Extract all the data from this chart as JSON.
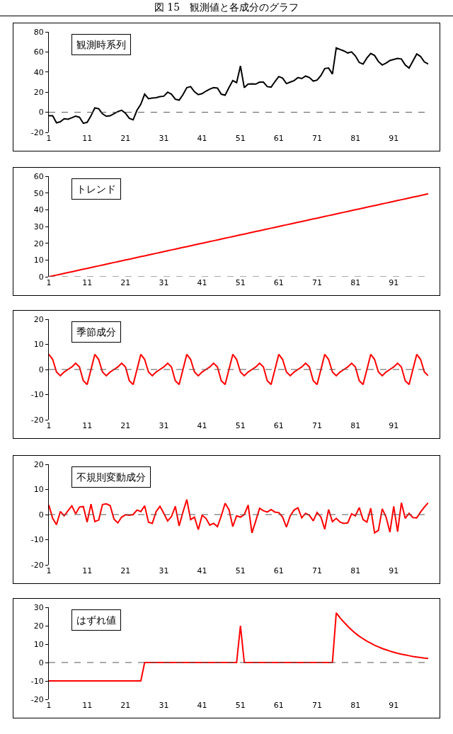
{
  "chart_data": [
    {
      "type": "line",
      "title": "図 15　観測値と各成分のグラフ",
      "annotations": [
        "観測時系列"
      ],
      "x": [
        1,
        2,
        3,
        4,
        5,
        6,
        7,
        8,
        9,
        10,
        11,
        12,
        13,
        14,
        15,
        16,
        17,
        18,
        19,
        20,
        21,
        22,
        23,
        24,
        25,
        26,
        27,
        28,
        29,
        30,
        31,
        32,
        33,
        34,
        35,
        36,
        37,
        38,
        39,
        40,
        41,
        42,
        43,
        44,
        45,
        46,
        47,
        48,
        49,
        50,
        51,
        52,
        53,
        54,
        55,
        56,
        57,
        58,
        59,
        60,
        61,
        62,
        63,
        64,
        65,
        66,
        67,
        68,
        69,
        70,
        71,
        72,
        73,
        74,
        75,
        76,
        77,
        78,
        79,
        80,
        81,
        82,
        83,
        84,
        85,
        86,
        87,
        88,
        89,
        90,
        91,
        92,
        93,
        94,
        95,
        96,
        97,
        98,
        99,
        100
      ],
      "xlim": [
        1,
        100
      ],
      "xticks": [
        1,
        11,
        21,
        31,
        41,
        51,
        61,
        71,
        81,
        91
      ],
      "ylim": [
        -20,
        80
      ],
      "yticks": [
        -20,
        0,
        20,
        40,
        60,
        80
      ],
      "grid": false,
      "ref_lines": [
        {
          "axis": "y",
          "value": 0,
          "label": null,
          "line_style": "dashed",
          "color": "#555555"
        }
      ],
      "series": [
        {
          "color": "#000000",
          "values": [
            -3.5,
            -3.5,
            -10.5,
            -9.5,
            -6.5,
            -7,
            -5.5,
            -3.8,
            -5,
            -11,
            -10,
            -3.5,
            4.3,
            3.5,
            -1.5,
            -4,
            -3.5,
            -1.5,
            0.7,
            2,
            -1,
            -6,
            -7.5,
            2,
            8,
            18,
            13.5,
            14.2,
            14.5,
            15.5,
            16,
            20,
            18,
            13,
            12,
            17.5,
            24.5,
            25.5,
            20.5,
            17.5,
            18.5,
            21,
            23,
            24.5,
            24,
            18,
            17,
            24.5,
            31.5,
            29.5,
            46,
            24.5,
            28,
            28.2,
            28,
            30,
            30,
            25.5,
            25,
            30.5,
            35.5,
            34,
            28.5,
            30,
            31.5,
            34.5,
            33.5,
            36,
            34.5,
            31,
            32,
            36.5,
            43.5,
            44,
            38,
            64,
            62.5,
            61,
            59,
            60,
            56,
            49.5,
            48,
            54,
            58.5,
            56.5,
            50.5,
            47,
            49,
            51.5,
            52.5,
            53.5,
            53,
            47,
            44,
            51,
            58,
            55.5,
            50,
            48
          ]
        }
      ]
    },
    {
      "type": "line",
      "annotations": [
        "トレンド"
      ],
      "x": [
        1,
        2,
        3,
        4,
        5,
        6,
        7,
        8,
        9,
        10,
        11,
        12,
        13,
        14,
        15,
        16,
        17,
        18,
        19,
        20,
        21,
        22,
        23,
        24,
        25,
        26,
        27,
        28,
        29,
        30,
        31,
        32,
        33,
        34,
        35,
        36,
        37,
        38,
        39,
        40,
        41,
        42,
        43,
        44,
        45,
        46,
        47,
        48,
        49,
        50,
        51,
        52,
        53,
        54,
        55,
        56,
        57,
        58,
        59,
        60,
        61,
        62,
        63,
        64,
        65,
        66,
        67,
        68,
        69,
        70,
        71,
        72,
        73,
        74,
        75,
        76,
        77,
        78,
        79,
        80,
        81,
        82,
        83,
        84,
        85,
        86,
        87,
        88,
        89,
        90,
        91,
        92,
        93,
        94,
        95,
        96,
        97,
        98,
        99,
        100
      ],
      "xlim": [
        1,
        100
      ],
      "xticks": [
        1,
        11,
        21,
        31,
        41,
        51,
        61,
        71,
        81,
        91
      ],
      "ylim": [
        0,
        60
      ],
      "yticks": [
        0,
        10,
        20,
        30,
        40,
        50,
        60
      ],
      "grid": false,
      "ref_lines": [
        {
          "axis": "y",
          "value": 0,
          "label": null,
          "line_style": "dashed",
          "color": "#555555"
        }
      ],
      "series": [
        {
          "color": "#ff0000",
          "values": [
            0,
            0.5,
            1,
            1.5,
            2,
            2.5,
            3,
            3.5,
            4,
            4.5,
            5,
            5.5,
            6,
            6.5,
            7,
            7.5,
            8,
            8.5,
            9,
            9.5,
            10,
            10.5,
            11,
            11.5,
            12,
            12.5,
            13,
            13.5,
            14,
            14.5,
            15,
            15.5,
            16,
            16.5,
            17,
            17.5,
            18,
            18.5,
            19,
            19.5,
            20,
            20.5,
            21,
            21.5,
            22,
            22.5,
            23,
            23.5,
            24,
            24.5,
            25,
            25.5,
            26,
            26.5,
            27,
            27.5,
            28,
            28.5,
            29,
            29.5,
            30,
            30.5,
            31,
            31.5,
            32,
            32.5,
            33,
            33.5,
            34,
            34.5,
            35,
            35.5,
            36,
            36.5,
            37,
            37.5,
            38,
            38.5,
            39,
            39.5,
            40,
            40.5,
            41,
            41.5,
            42,
            42.5,
            43,
            43.5,
            44,
            44.5,
            45,
            45.5,
            46,
            46.5,
            47,
            47.5,
            48,
            48.5,
            49,
            49.5
          ]
        }
      ]
    },
    {
      "type": "line",
      "annotations": [
        "季節成分"
      ],
      "x": [
        1,
        2,
        3,
        4,
        5,
        6,
        7,
        8,
        9,
        10,
        11,
        12,
        13,
        14,
        15,
        16,
        17,
        18,
        19,
        20,
        21,
        22,
        23,
        24,
        25,
        26,
        27,
        28,
        29,
        30,
        31,
        32,
        33,
        34,
        35,
        36,
        37,
        38,
        39,
        40,
        41,
        42,
        43,
        44,
        45,
        46,
        47,
        48,
        49,
        50,
        51,
        52,
        53,
        54,
        55,
        56,
        57,
        58,
        59,
        60,
        61,
        62,
        63,
        64,
        65,
        66,
        67,
        68,
        69,
        70,
        71,
        72,
        73,
        74,
        75,
        76,
        77,
        78,
        79,
        80,
        81,
        82,
        83,
        84,
        85,
        86,
        87,
        88,
        89,
        90,
        91,
        92,
        93,
        94,
        95,
        96,
        97,
        98,
        99,
        100
      ],
      "xlim": [
        1,
        100
      ],
      "xticks": [
        1,
        11,
        21,
        31,
        41,
        51,
        61,
        71,
        81,
        91
      ],
      "ylim": [
        -20,
        20
      ],
      "yticks": [
        -20,
        -10,
        0,
        10,
        20
      ],
      "grid": false,
      "ref_lines": [
        {
          "axis": "y",
          "value": 0,
          "label": null,
          "line_style": "dashed",
          "color": "#555555"
        }
      ],
      "series": [
        {
          "color": "#ff0000",
          "values": [
            6,
            4,
            -1,
            -2.5,
            -1,
            0,
            1,
            2.5,
            1,
            -4.5,
            -6,
            0,
            6,
            4,
            -1,
            -2.5,
            -1,
            0,
            1,
            2.5,
            1,
            -4.5,
            -6,
            0,
            6,
            4,
            -1,
            -2.5,
            -1,
            0,
            1,
            2.5,
            1,
            -4.5,
            -6,
            0,
            6,
            4,
            -1,
            -2.5,
            -1,
            0,
            1,
            2.5,
            1,
            -4.5,
            -6,
            0,
            6,
            4,
            -1,
            -2.5,
            -1,
            0,
            1,
            2.5,
            1,
            -4.5,
            -6,
            0,
            6,
            4,
            -1,
            -2.5,
            -1,
            0,
            1,
            2.5,
            1,
            -4.5,
            -6,
            0,
            6,
            4,
            -1,
            -2.5,
            -1,
            0,
            1,
            2.5,
            1,
            -4.5,
            -6,
            0,
            6,
            4,
            -1,
            -2.5,
            -1,
            0,
            1,
            2.5,
            1,
            -4.5,
            -6,
            0,
            6,
            4,
            -1,
            -2.5
          ]
        }
      ]
    },
    {
      "type": "line",
      "annotations": [
        "不規則変動成分"
      ],
      "x": [
        1,
        2,
        3,
        4,
        5,
        6,
        7,
        8,
        9,
        10,
        11,
        12,
        13,
        14,
        15,
        16,
        17,
        18,
        19,
        20,
        21,
        22,
        23,
        24,
        25,
        26,
        27,
        28,
        29,
        30,
        31,
        32,
        33,
        34,
        35,
        36,
        37,
        38,
        39,
        40,
        41,
        42,
        43,
        44,
        45,
        46,
        47,
        48,
        49,
        50,
        51,
        52,
        53,
        54,
        55,
        56,
        57,
        58,
        59,
        60,
        61,
        62,
        63,
        64,
        65,
        66,
        67,
        68,
        69,
        70,
        71,
        72,
        73,
        74,
        75,
        76,
        77,
        78,
        79,
        80,
        81,
        82,
        83,
        84,
        85,
        86,
        87,
        88,
        89,
        90,
        91,
        92,
        93,
        94,
        95,
        96,
        97,
        98,
        99,
        100
      ],
      "xlim": [
        1,
        100
      ],
      "xticks": [
        1,
        11,
        21,
        31,
        41,
        51,
        61,
        71,
        81,
        91
      ],
      "ylim": [
        -20,
        20
      ],
      "yticks": [
        -20,
        -10,
        0,
        10,
        20
      ],
      "grid": false,
      "ref_lines": [
        {
          "axis": "y",
          "value": 0,
          "label": null,
          "line_style": "dashed",
          "color": "#555555"
        }
      ],
      "series": [
        {
          "color": "#ff0000",
          "values": [
            3.8,
            -1.5,
            -4,
            1.2,
            -0.5,
            1.5,
            3.5,
            0.3,
            3,
            3.2,
            -3,
            4.2,
            -2.8,
            -2.2,
            4,
            4.3,
            3.6,
            -1.8,
            -3.3,
            -1,
            -0.1,
            -0.3,
            0,
            1.8,
            1.2,
            3.5,
            -3,
            -3.5,
            1.2,
            3.3,
            0.5,
            -2.5,
            -0.8,
            3.3,
            -4.5,
            1,
            6,
            -2,
            -1,
            -6,
            -0.3,
            -1.5,
            -4.2,
            -3.5,
            -4.8,
            -0.5,
            4.5,
            2,
            -4.8,
            -0.5,
            -1,
            0,
            3.8,
            -7.3,
            -2.5,
            2.5,
            1.5,
            1,
            2,
            1,
            0.8,
            -1,
            -5,
            -0.5,
            1.8,
            2.7,
            -1.3,
            0.5,
            -0.3,
            -2.5,
            0.8,
            -1,
            -5.8,
            2,
            -2.8,
            -1.5,
            -3,
            -3.5,
            -3.3,
            0.3,
            -0.5,
            2.8,
            -2,
            -3,
            2.5,
            -7.3,
            -6.3,
            2.3,
            -1,
            -7,
            3.3,
            -6.8,
            4.7,
            -1.5,
            0.5,
            -1.2,
            -1.3,
            1,
            3,
            4.7
          ]
        }
      ]
    },
    {
      "type": "line",
      "annotations": [
        "はずれ値"
      ],
      "x": [
        1,
        2,
        3,
        4,
        5,
        6,
        7,
        8,
        9,
        10,
        11,
        12,
        13,
        14,
        15,
        16,
        17,
        18,
        19,
        20,
        21,
        22,
        23,
        24,
        25,
        26,
        27,
        28,
        29,
        30,
        31,
        32,
        33,
        34,
        35,
        36,
        37,
        38,
        39,
        40,
        41,
        42,
        43,
        44,
        45,
        46,
        47,
        48,
        49,
        50,
        51,
        52,
        53,
        54,
        55,
        56,
        57,
        58,
        59,
        60,
        61,
        62,
        63,
        64,
        65,
        66,
        67,
        68,
        69,
        70,
        71,
        72,
        73,
        74,
        75,
        76,
        77,
        78,
        79,
        80,
        81,
        82,
        83,
        84,
        85,
        86,
        87,
        88,
        89,
        90,
        91,
        92,
        93,
        94,
        95,
        96,
        97,
        98,
        99,
        100
      ],
      "xlim": [
        1,
        100
      ],
      "xticks": [
        1,
        11,
        21,
        31,
        41,
        51,
        61,
        71,
        81,
        91
      ],
      "ylim": [
        -20,
        30
      ],
      "yticks": [
        -20,
        -10,
        0,
        10,
        20,
        30
      ],
      "grid": false,
      "ref_lines": [
        {
          "axis": "y",
          "value": 0,
          "label": null,
          "line_style": "dashed",
          "color": "#555555"
        }
      ],
      "series": [
        {
          "color": "#ff0000",
          "values": [
            -10,
            -10,
            -10,
            -10,
            -10,
            -10,
            -10,
            -10,
            -10,
            -10,
            -10,
            -10,
            -10,
            -10,
            -10,
            -10,
            -10,
            -10,
            -10,
            -10,
            -10,
            -10,
            -10,
            -10,
            -10,
            0,
            0,
            0,
            0,
            0,
            0,
            0,
            0,
            0,
            0,
            0,
            0,
            0,
            0,
            0,
            0,
            0,
            0,
            0,
            0,
            0,
            0,
            0,
            0,
            0,
            20,
            0,
            0,
            0,
            0,
            0,
            0,
            0,
            0,
            0,
            0,
            0,
            0,
            0,
            0,
            0,
            0,
            0,
            0,
            0,
            0,
            0,
            0,
            0,
            0,
            27,
            24.3,
            21.9,
            19.7,
            17.7,
            15.9,
            14.3,
            12.9,
            11.6,
            10.5,
            9.4,
            8.5,
            7.6,
            6.9,
            6.2,
            5.6,
            5.0,
            4.5,
            4.1,
            3.7,
            3.3,
            3.0,
            2.7,
            2.4,
            2.2
          ]
        }
      ]
    }
  ]
}
